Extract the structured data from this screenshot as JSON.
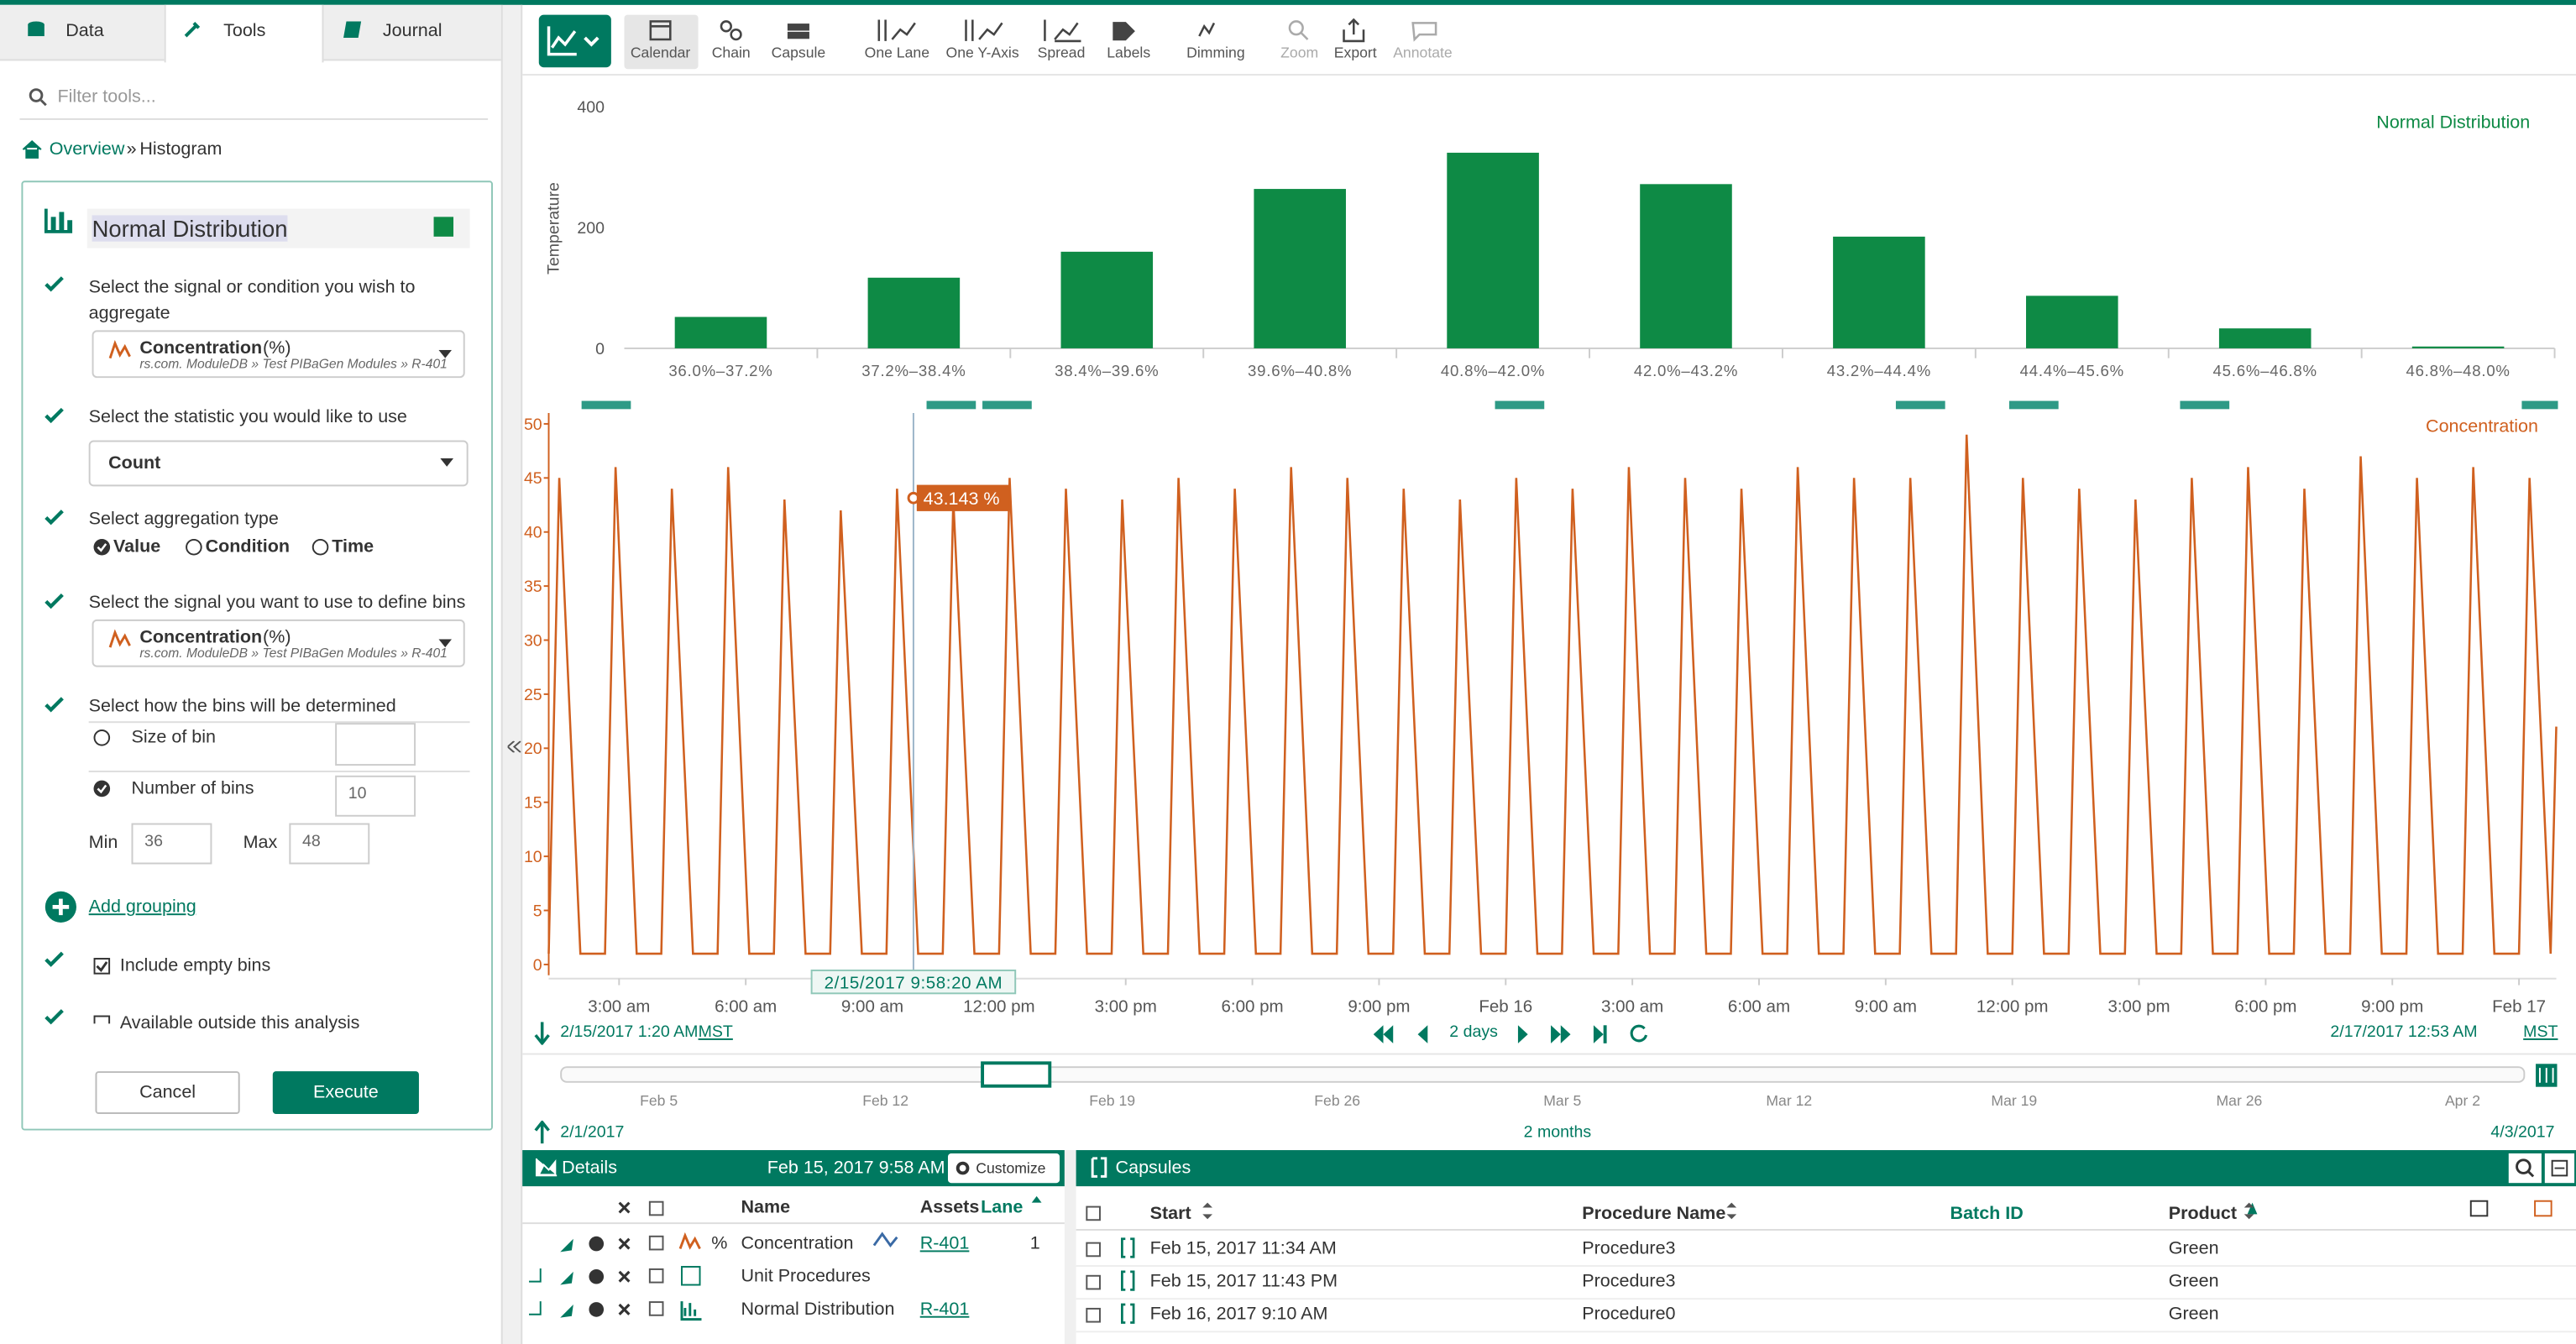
{
  "left_panel": {
    "tabs": [
      "Data",
      "Tools",
      "Journal"
    ],
    "filter_placeholder": "Filter tools...",
    "breadcrumb": {
      "link": "Overview",
      "separator": "»",
      "current": "Histogram"
    },
    "tool_name": "Normal Distribution",
    "step_signal": {
      "label": "Select the signal or condition you wish to aggregate",
      "signal": "Concentration",
      "unit": "(%)",
      "path": "rs.com. ModuleDB » Test PIBaGen Modules » R-401"
    },
    "step_statistic": {
      "label": "Select the statistic you would like to use",
      "value": "Count"
    },
    "step_aggregation": {
      "label": "Select aggregation type",
      "options": [
        "Value",
        "Condition",
        "Time"
      ]
    },
    "step_bin_signal": {
      "label": "Select the signal you want to use to define bins",
      "signal": "Concentration",
      "unit": "(%)",
      "path": "rs.com. ModuleDB » Test PIBaGen Modules » R-401"
    },
    "step_bins": {
      "label": "Select how the bins will be determined",
      "size_of_bin": "Size of bin",
      "number_of_bins": "Number of bins",
      "bins": 10,
      "min_label": "Min",
      "min": 36,
      "max_label": "Max",
      "max": 48
    },
    "add_grouping": "Add grouping",
    "include_empty": "Include empty bins",
    "available_outside": "Available outside this analysis",
    "cancel": "Cancel",
    "execute": "Execute"
  },
  "toolbar": [
    "Calendar",
    "Chain",
    "Capsule",
    "One Lane",
    "One Y-Axis",
    "Spread",
    "Labels",
    "Dimming",
    "Zoom",
    "Export",
    "Annotate"
  ],
  "chart_data": [
    {
      "type": "bar",
      "ylabel": "Temperature",
      "categories": [
        "36.0%–37.2%",
        "37.2%–38.4%",
        "38.4%–39.6%",
        "39.6%–40.8%",
        "40.8%–42.0%",
        "42.0%–43.2%",
        "43.2%–44.4%",
        "44.4%–45.6%",
        "45.6%–46.8%",
        "46.8%–48.0%"
      ],
      "series": [
        {
          "name": "Normal Distribution",
          "color": "#0e8a45",
          "values": [
            52,
            117,
            160,
            264,
            324,
            272,
            185,
            87,
            33,
            3
          ]
        }
      ],
      "ylim": [
        0,
        430
      ],
      "yticks": [
        0,
        200,
        400
      ],
      "grid": false
    },
    {
      "type": "line",
      "xlim": [
        "2017-02-15T01:20",
        "2017-02-17T00:53"
      ],
      "xticks": [
        {
          "value": "2017-02-15T03:00",
          "label": "3:00 am"
        },
        {
          "value": "2017-02-15T06:00",
          "label": "6:00 am"
        },
        {
          "value": "2017-02-15T09:00",
          "label": "9:00 am"
        },
        {
          "value": "2017-02-15T12:00",
          "label": "12:00 pm"
        },
        {
          "value": "2017-02-15T15:00",
          "label": "3:00 pm"
        },
        {
          "value": "2017-02-15T18:00",
          "label": "6:00 pm"
        },
        {
          "value": "2017-02-15T21:00",
          "label": "9:00 pm"
        },
        {
          "value": "2017-02-16T00:00",
          "label": "Feb 16"
        },
        {
          "value": "2017-02-16T03:00",
          "label": "3:00 am"
        },
        {
          "value": "2017-02-16T06:00",
          "label": "6:00 am"
        },
        {
          "value": "2017-02-16T09:00",
          "label": "9:00 am"
        },
        {
          "value": "2017-02-16T12:00",
          "label": "12:00 pm"
        },
        {
          "value": "2017-02-16T15:00",
          "label": "3:00 pm"
        },
        {
          "value": "2017-02-16T18:00",
          "label": "6:00 pm"
        },
        {
          "value": "2017-02-16T21:00",
          "label": "9:00 pm"
        },
        {
          "value": "2017-02-17T00:00",
          "label": "Feb 17"
        }
      ],
      "ylim": [
        -1,
        51
      ],
      "yticks": [
        0,
        5,
        10,
        15,
        20,
        25,
        30,
        35,
        40,
        45,
        50
      ],
      "grid": false,
      "x": [
        "2017-02-15T01:20",
        "2017-02-15T01:35",
        "2017-02-15T02:05",
        "2017-02-15T02:40",
        "2017-02-15T02:55",
        "2017-02-15T03:25",
        "2017-02-15T04:00",
        "2017-02-15T04:15",
        "2017-02-15T04:45",
        "2017-02-15T05:20",
        "2017-02-15T05:35",
        "2017-02-15T06:05",
        "2017-02-15T06:40",
        "2017-02-15T06:55",
        "2017-02-15T07:25",
        "2017-02-15T08:00",
        "2017-02-15T08:15",
        "2017-02-15T08:45",
        "2017-02-15T09:20",
        "2017-02-15T09:35",
        "2017-02-15T10:05",
        "2017-02-15T10:40",
        "2017-02-15T10:55",
        "2017-02-15T11:25",
        "2017-02-15T12:00",
        "2017-02-15T12:15",
        "2017-02-15T12:45",
        "2017-02-15T13:20",
        "2017-02-15T13:35",
        "2017-02-15T14:05",
        "2017-02-15T14:40",
        "2017-02-15T14:55",
        "2017-02-15T15:25",
        "2017-02-15T16:00",
        "2017-02-15T16:15",
        "2017-02-15T16:45",
        "2017-02-15T17:20",
        "2017-02-15T17:35",
        "2017-02-15T18:05",
        "2017-02-15T18:40",
        "2017-02-15T18:55",
        "2017-02-15T19:25",
        "2017-02-15T20:00",
        "2017-02-15T20:15",
        "2017-02-15T20:45",
        "2017-02-15T21:20",
        "2017-02-15T21:35",
        "2017-02-15T22:05",
        "2017-02-15T22:40",
        "2017-02-15T22:55",
        "2017-02-15T23:25",
        "2017-02-16T00:00",
        "2017-02-16T00:15",
        "2017-02-16T00:45",
        "2017-02-16T01:20",
        "2017-02-16T01:35",
        "2017-02-16T02:05",
        "2017-02-16T02:40",
        "2017-02-16T02:55",
        "2017-02-16T03:25",
        "2017-02-16T04:00",
        "2017-02-16T04:15",
        "2017-02-16T04:45",
        "2017-02-16T05:20",
        "2017-02-16T05:35",
        "2017-02-16T06:05",
        "2017-02-16T06:40",
        "2017-02-16T06:55",
        "2017-02-16T07:25",
        "2017-02-16T08:00",
        "2017-02-16T08:15",
        "2017-02-16T08:45",
        "2017-02-16T09:20",
        "2017-02-16T09:35",
        "2017-02-16T10:05",
        "2017-02-16T10:40",
        "2017-02-16T10:55",
        "2017-02-16T11:25",
        "2017-02-16T12:00",
        "2017-02-16T12:15",
        "2017-02-16T12:45",
        "2017-02-16T13:20",
        "2017-02-16T13:35",
        "2017-02-16T14:05",
        "2017-02-16T14:40",
        "2017-02-16T14:55",
        "2017-02-16T15:25",
        "2017-02-16T16:00",
        "2017-02-16T16:15",
        "2017-02-16T16:45",
        "2017-02-16T17:20",
        "2017-02-16T17:35",
        "2017-02-16T18:05",
        "2017-02-16T18:40",
        "2017-02-16T18:55",
        "2017-02-16T19:25",
        "2017-02-16T20:00",
        "2017-02-16T20:15",
        "2017-02-16T20:45",
        "2017-02-16T21:20",
        "2017-02-16T21:35",
        "2017-02-16T22:05",
        "2017-02-16T22:40",
        "2017-02-16T22:55",
        "2017-02-16T23:25",
        "2017-02-17T00:00",
        "2017-02-17T00:15",
        "2017-02-17T00:45",
        "2017-02-17T00:53"
      ],
      "series": [
        {
          "name": "Concentration",
          "color": "#d0601f",
          "values": [
            1,
            45,
            1,
            1,
            46,
            1,
            1,
            44,
            1,
            1,
            46,
            1,
            1,
            43,
            1,
            1,
            42,
            1,
            1,
            44,
            1,
            1,
            43,
            1,
            1,
            45,
            1,
            1,
            44,
            1,
            1,
            43,
            1,
            1,
            45,
            1,
            1,
            44,
            1,
            1,
            46,
            1,
            1,
            45,
            1,
            1,
            44,
            1,
            1,
            43,
            1,
            1,
            45,
            1,
            1,
            44,
            1,
            1,
            46,
            1,
            1,
            45,
            1,
            1,
            44,
            1,
            1,
            46,
            1,
            1,
            45,
            1,
            1,
            45,
            1,
            1,
            49,
            1,
            1,
            45,
            1,
            1,
            44,
            1,
            1,
            43,
            1,
            1,
            45,
            1,
            1,
            46,
            1,
            1,
            44,
            1,
            1,
            47,
            1,
            1,
            45,
            1,
            1,
            46,
            1,
            1,
            45,
            1,
            22
          ]
        }
      ],
      "cursor": {
        "x": "2017-02-15T09:58:20",
        "x_label": "2/15/2017 9:58:20 AM",
        "value": 43.143,
        "value_label": "43.143 %"
      }
    }
  ],
  "time_range": {
    "start": "2/15/2017 1:20 AM",
    "start_tz": "MST",
    "duration": "2 days",
    "end": "2/17/2017 12:53 AM",
    "end_tz": "MST"
  },
  "overview": {
    "labels": [
      "Feb 5",
      "Feb 12",
      "Feb 19",
      "Feb 26",
      "Mar 5",
      "Mar 12",
      "Mar 19",
      "Mar 26",
      "Apr 2"
    ],
    "start": "2/1/2017",
    "span": "2 months",
    "end": "4/3/2017"
  },
  "details": {
    "title": "Details",
    "date": "Feb 15, 2017 9:58 AM",
    "customize": "Customize",
    "headers": {
      "name": "Name",
      "assets": "Assets",
      "lane": "Lane"
    },
    "rows": [
      {
        "unit": "%",
        "name": "Concentration",
        "asset": "R-401",
        "lane": 1
      },
      {
        "name": "Unit Procedures"
      },
      {
        "name": "Normal Distribution",
        "asset": "R-401"
      }
    ]
  },
  "capsules": {
    "title": "Capsules",
    "headers": {
      "start": "Start",
      "procedure": "Procedure Name",
      "batch": "Batch ID",
      "product": "Product"
    },
    "rows": [
      {
        "start": "Feb 15, 2017 11:34 AM",
        "procedure": "Procedure3",
        "product": "Green"
      },
      {
        "start": "Feb 15, 2017 11:43 PM",
        "procedure": "Procedure3",
        "product": "Green"
      },
      {
        "start": "Feb 16, 2017 9:10 AM",
        "procedure": "Procedure0",
        "product": "Green"
      }
    ]
  }
}
